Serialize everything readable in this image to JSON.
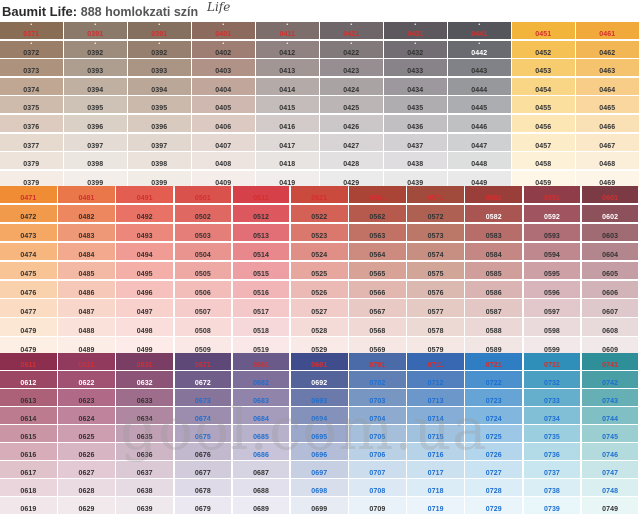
{
  "header": {
    "brand": "Baumit Life:",
    "subtitle": "888 homlokzati szín",
    "script_word": "Life"
  },
  "watermark": "gool.com.ua",
  "palette": {
    "blocks": [
      {
        "columns": [
          {
            "codes": [
              "0371",
              "0372",
              "0373",
              "0374",
              "0375",
              "0376",
              "0377",
              "0379",
              "0379"
            ],
            "colors": [
              "#8a6d55",
              "#9b7e67",
              "#ad937e",
              "#bfa794",
              "#cfbbab",
              "#dccbbe",
              "#e6d9ce",
              "#eee3da",
              "#f4ece5"
            ]
          },
          {
            "codes": [
              "0391",
              "0392",
              "0393",
              "0394",
              "0395",
              "0396",
              "0397",
              "0398",
              "0399"
            ],
            "colors": [
              "#8b7a6a",
              "#9d8c7c",
              "#ae9e8f",
              "#bfb0a2",
              "#cec1b5",
              "#dad0c6",
              "#e4dcd4",
              "#ece6e0",
              "#f3eeea"
            ]
          },
          {
            "codes": [
              "0391",
              "0392",
              "0393",
              "0394",
              "0395",
              "0396",
              "0397",
              "0398",
              "0399"
            ],
            "colors": [
              "#85705f",
              "#977f6f",
              "#aa9484",
              "#bba797",
              "#cbb9ab",
              "#d8cabe",
              "#e2d7ce",
              "#ebe2db",
              "#f2ece6"
            ]
          },
          {
            "codes": [
              "0401",
              "0402",
              "0403",
              "0404",
              "0405",
              "0406",
              "0407",
              "0408",
              "0409"
            ],
            "colors": [
              "#8c6a5e",
              "#9e7d72",
              "#b09287",
              "#c1a69c",
              "#cfb8b0",
              "#dbc9c2",
              "#e5d8d3",
              "#ede3df",
              "#f4ede9"
            ]
          },
          {
            "codes": [
              "0411",
              "0412",
              "0413",
              "0414",
              "0415",
              "0416",
              "0417",
              "0418",
              "0419"
            ],
            "colors": [
              "#7d6e6c",
              "#8f8280",
              "#a29694",
              "#b4aaa8",
              "#c4bcba",
              "#d2cbc9",
              "#ded9d7",
              "#e8e4e2",
              "#f0edec"
            ]
          },
          {
            "codes": [
              "0421",
              "0422",
              "0423",
              "0424",
              "0425",
              "0426",
              "0427",
              "0428",
              "0429"
            ],
            "colors": [
              "#6e6668",
              "#82797b",
              "#968e90",
              "#aaa3a4",
              "#bbb5b6",
              "#cbc6c7",
              "#d8d4d5",
              "#e3e0e1",
              "#ecebeb"
            ]
          },
          {
            "codes": [
              "0431",
              "0432",
              "0433",
              "0434",
              "0435",
              "0436",
              "0437",
              "0438",
              "0439"
            ],
            "colors": [
              "#5c585d",
              "#716d72",
              "#878388",
              "#9c989d",
              "#b0adb1",
              "#c2bfc3",
              "#d2d0d3",
              "#dfdddf",
              "#eae9ea"
            ]
          },
          {
            "codes": [
              "0441",
              "0442",
              "0443",
              "0444",
              "0445",
              "0446",
              "0447",
              "0448",
              "0449"
            ],
            "colors": [
              "#55565b",
              "#6a6b70",
              "#818287",
              "#97989c",
              "#acadb0",
              "#bfc0c2",
              "#cfd0d1",
              "#dddede",
              "#e9e9ea"
            ]
          },
          {
            "codes": [
              "0451",
              "0452",
              "0453",
              "0454",
              "0455",
              "0456",
              "0457",
              "0458",
              "0459"
            ],
            "colors": [
              "#f3b43c",
              "#f5c155",
              "#f7cc6e",
              "#f8d686",
              "#fadf9e",
              "#fbe6b4",
              "#fcedc8",
              "#fdf2d8",
              "#fef7e7"
            ]
          },
          {
            "codes": [
              "0461",
              "0462",
              "0463",
              "0464",
              "0465",
              "0466",
              "0467",
              "0468",
              "0469"
            ],
            "colors": [
              "#f1a93b",
              "#f3b655",
              "#f5c26e",
              "#f7cd87",
              "#f9d79f",
              "#fae0b5",
              "#fbe8c8",
              "#fcefd9",
              "#fdf5e8"
            ]
          }
        ]
      },
      {
        "columns": [
          {
            "codes": [
              "0471",
              "0472",
              "0473",
              "0474",
              "0475",
              "0476",
              "0477",
              "0479",
              "0479"
            ],
            "colors": [
              "#ef8c34",
              "#f29a4c",
              "#f4a864",
              "#f6b67d",
              "#f8c495",
              "#f9d1ad",
              "#fbdcc2",
              "#fce6d4",
              "#fdefe4"
            ]
          },
          {
            "codes": [
              "0481",
              "0482",
              "0483",
              "0484",
              "0485",
              "0486",
              "0487",
              "0488",
              "0489"
            ],
            "colors": [
              "#e9774a",
              "#ec8760",
              "#ef9877",
              "#f2a98e",
              "#f4b9a4",
              "#f6c8b8",
              "#f8d6ca",
              "#fae2da",
              "#fcede7"
            ]
          },
          {
            "codes": [
              "0491",
              "0492",
              "0493",
              "0494",
              "0495",
              "0496",
              "0497",
              "0498",
              "0499"
            ],
            "colors": [
              "#e35e50",
              "#e87266",
              "#ec877c",
              "#f09b93",
              "#f3afa8",
              "#f6c1bc",
              "#f8d1cd",
              "#fadedb",
              "#fcebe9"
            ]
          },
          {
            "codes": [
              "0501",
              "0502",
              "0503",
              "0504",
              "0505",
              "0506",
              "0507",
              "0508",
              "0509"
            ],
            "colors": [
              "#d9534c",
              "#df6862",
              "#e57e79",
              "#ea948f",
              "#eea9a5",
              "#f2bcb9",
              "#f5ccca",
              "#f8dbd9",
              "#fae8e7"
            ]
          },
          {
            "codes": [
              "0511",
              "0512",
              "0513",
              "0514",
              "0515",
              "0516",
              "0517",
              "0518",
              "0519"
            ],
            "colors": [
              "#d64048",
              "#dc575e",
              "#e26f75",
              "#e8878c",
              "#ed9fa3",
              "#f1b4b7",
              "#f4c7c9",
              "#f7d8da",
              "#fae7e8"
            ]
          },
          {
            "codes": [
              "0521",
              "0522",
              "0523",
              "0524",
              "0525",
              "0526",
              "0527",
              "0528",
              "0529"
            ],
            "colors": [
              "#cb4a3e",
              "#d36155",
              "#da786d",
              "#e08f86",
              "#e7a69e",
              "#ecbab4",
              "#f1cbc7",
              "#f5dbd8",
              "#f9e9e7"
            ]
          },
          {
            "codes": [
              "0561",
              "0562",
              "0563",
              "0564",
              "0565",
              "0566",
              "0567",
              "0568",
              "0569"
            ],
            "colors": [
              "#a94436",
              "#b65a4d",
              "#c27265",
              "#cd8a7e",
              "#d8a297",
              "#e1b7af",
              "#e9c9c3",
              "#f0d9d5",
              "#f6e7e5"
            ]
          },
          {
            "codes": [
              "0571",
              "0572",
              "0573",
              "0574",
              "0575",
              "0576",
              "0577",
              "0578",
              "0579"
            ],
            "colors": [
              "#a14b3c",
              "#ae6152",
              "#bb7869",
              "#c78f81",
              "#d2a599",
              "#dcb9b0",
              "#e5cac3",
              "#edd9d4",
              "#f4e7e4"
            ]
          },
          {
            "codes": [
              "0581",
              "0582",
              "0583",
              "0584",
              "0585",
              "0586",
              "0587",
              "0588",
              "0589"
            ],
            "colors": [
              "#9a3e3a",
              "#a95551",
              "#b76e6a",
              "#c48783",
              "#d09f9c",
              "#dab4b2",
              "#e3c7c5",
              "#ebd7d6",
              "#f2e6e5"
            ]
          },
          {
            "codes": [
              "0591",
              "0592",
              "0593",
              "0594",
              "0595",
              "0596",
              "0597",
              "0598",
              "0599"
            ],
            "colors": [
              "#8f3d48",
              "#9f545f",
              "#af6d76",
              "#bf878e",
              "#cda0a6",
              "#d8b5ba",
              "#e2c8cb",
              "#eadadc",
              "#f2e8e9"
            ]
          },
          {
            "codes": [
              "0601",
              "0602",
              "0603",
              "0604",
              "0605",
              "0606",
              "0607",
              "0608",
              "0609"
            ],
            "colors": [
              "#7b3a44",
              "#8d515b",
              "#a06b73",
              "#b3858c",
              "#c49ea4",
              "#d2b4b8",
              "#dec8cb",
              "#e8d9db",
              "#f1e8e9"
            ]
          }
        ]
      },
      {
        "columns": [
          {
            "codes": [
              "0611",
              "0612",
              "0613",
              "0614",
              "0615",
              "0616",
              "0617",
              "0618",
              "0619"
            ],
            "colors": [
              "#8c2f4e",
              "#9c4763",
              "#ac6179",
              "#bc7b8f",
              "#ca95a5",
              "#d6adb9",
              "#e0c2cb",
              "#e9d5db",
              "#f1e6ea"
            ]
          },
          {
            "codes": [
              "0621",
              "0622",
              "0623",
              "0624",
              "0625",
              "0626",
              "0627",
              "0628",
              "0629"
            ],
            "colors": [
              "#913a5e",
              "#a15172",
              "#b06a87",
              "#bf849c",
              "#cc9eb0",
              "#d8b5c3",
              "#e2c9d3",
              "#eadae1",
              "#f2e9ed"
            ]
          },
          {
            "codes": [
              "0631",
              "0632",
              "0633",
              "0634",
              "0635",
              "0636",
              "0637",
              "0638",
              "0639"
            ],
            "colors": [
              "#7a3d63",
              "#8c5477",
              "#9e6d8b",
              "#b087a0",
              "#c0a0b4",
              "#cfb6c6",
              "#dbcad6",
              "#e6dbe3",
              "#efe9ee"
            ]
          },
          {
            "codes": [
              "0671",
              "0672",
              "0673",
              "0674",
              "0675",
              "0676",
              "0677",
              "0678",
              "0679"
            ],
            "colors": [
              "#5d4877",
              "#715d89",
              "#87749b",
              "#9c8cae",
              "#b0a4c0",
              "#c2b9cf",
              "#d2cbdc",
              "#dfdae7",
              "#ebe8f1"
            ]
          },
          {
            "codes": [
              "0681",
              "0682",
              "0683",
              "0684",
              "0685",
              "0686",
              "0687",
              "0688",
              "0689"
            ],
            "colors": [
              "#6a5a8a",
              "#7d6e9a",
              "#9184ab",
              "#a59bbb",
              "#b8b1cb",
              "#c8c3d8",
              "#d6d3e3",
              "#e2e0ec",
              "#ecebf3"
            ]
          },
          {
            "codes": [
              "0691",
              "0692",
              "0693",
              "0694",
              "0695",
              "0696",
              "0697",
              "0698",
              "0699"
            ],
            "colors": [
              "#3f4d8c",
              "#55639b",
              "#6c7aab",
              "#8491bb",
              "#9ca8cb",
              "#b3bdd8",
              "#c7cfe3",
              "#d8deec",
              "#e7ebf4"
            ]
          },
          {
            "codes": [
              "0701",
              "0702",
              "0703",
              "0704",
              "0705",
              "0706",
              "0707",
              "0708",
              "0709"
            ],
            "colors": [
              "#4a6aa8",
              "#6080b5",
              "#7796c2",
              "#8eabcf",
              "#a5bfdb",
              "#bad0e5",
              "#ccdeee",
              "#dce9f4",
              "#eaf2f9"
            ]
          },
          {
            "codes": [
              "0711",
              "0712",
              "0713",
              "0714",
              "0715",
              "0716",
              "0717",
              "0718",
              "0719"
            ],
            "colors": [
              "#3868b2",
              "#5280be",
              "#6c97ca",
              "#86add5",
              "#a0c2df",
              "#b7d3e8",
              "#cbe1f0",
              "#dcecf6",
              "#eaf4fa"
            ]
          },
          {
            "codes": [
              "0721",
              "0722",
              "0723",
              "0724",
              "0725",
              "0726",
              "0727",
              "0728",
              "0729"
            ],
            "colors": [
              "#2f7ec4",
              "#4a91cd",
              "#66a4d6",
              "#81b6de",
              "#9cc7e6",
              "#b4d6ed",
              "#c9e3f3",
              "#dbedf7",
              "#e9f5fb"
            ]
          },
          {
            "codes": [
              "0731",
              "0732",
              "0733",
              "0734",
              "0735",
              "0736",
              "0737",
              "0738",
              "0739"
            ],
            "colors": [
              "#2f8fb8",
              "#4a9fc2",
              "#65afcc",
              "#80bfd6",
              "#9bcedf",
              "#b3dbe7",
              "#c8e6ef",
              "#daeff5",
              "#e9f6fa"
            ]
          },
          {
            "codes": [
              "0741",
              "0742",
              "0743",
              "0744",
              "0745",
              "0746",
              "0747",
              "0748",
              "0749"
            ],
            "colors": [
              "#2f8f98",
              "#4a9fa6",
              "#65afb5",
              "#80bfc3",
              "#9bced1",
              "#b3dbdd",
              "#c8e6e7",
              "#daefef",
              "#e9f6f6"
            ]
          }
        ]
      }
    ]
  }
}
